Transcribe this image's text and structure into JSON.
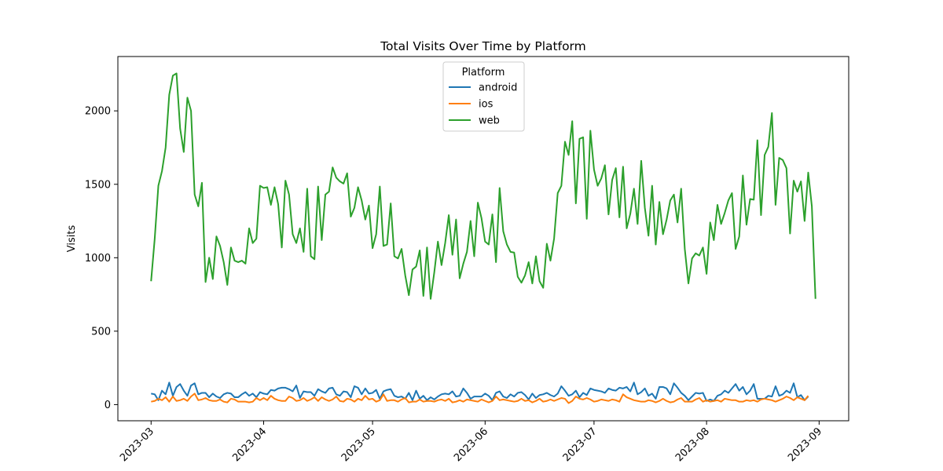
{
  "chart_data": {
    "type": "line",
    "title": "Total Visits Over Time by Platform",
    "xlabel": "",
    "ylabel": "Visits",
    "x_start": "2023-03-01",
    "x_end": "2023-08-31",
    "x_ticks": [
      "2023-03",
      "2023-04",
      "2023-05",
      "2023-06",
      "2023-07",
      "2023-08",
      "2023-09"
    ],
    "y_ticks": [
      0,
      500,
      1000,
      1500,
      2000
    ],
    "ylim": [
      -110,
      2370
    ],
    "grid": false,
    "legend": {
      "title": "Platform",
      "placement": "upper-center"
    },
    "series": [
      {
        "name": "android",
        "color": "#1f77b4",
        "values": [
          75,
          70,
          30,
          95,
          70,
          150,
          60,
          120,
          140,
          95,
          60,
          130,
          145,
          70,
          80,
          80,
          50,
          75,
          55,
          45,
          70,
          80,
          75,
          50,
          50,
          70,
          85,
          60,
          75,
          50,
          85,
          75,
          70,
          100,
          95,
          110,
          115,
          115,
          105,
          90,
          130,
          45,
          90,
          85,
          85,
          60,
          105,
          90,
          80,
          110,
          115,
          70,
          60,
          90,
          85,
          50,
          125,
          115,
          70,
          110,
          75,
          80,
          100,
          40,
          90,
          100,
          105,
          60,
          50,
          55,
          40,
          80,
          30,
          95,
          40,
          60,
          30,
          50,
          35,
          55,
          70,
          75,
          70,
          90,
          55,
          60,
          110,
          80,
          40,
          55,
          55,
          55,
          75,
          60,
          30,
          80,
          90,
          55,
          45,
          70,
          55,
          80,
          85,
          65,
          35,
          75,
          45,
          65,
          70,
          80,
          65,
          55,
          75,
          125,
          95,
          60,
          70,
          95,
          50,
          80,
          65,
          110,
          100,
          95,
          90,
          80,
          110,
          100,
          95,
          115,
          110,
          120,
          90,
          150,
          70,
          85,
          110,
          60,
          75,
          40,
          120,
          120,
          110,
          70,
          145,
          115,
          80,
          60,
          30,
          55,
          80,
          75,
          80,
          25,
          35,
          25,
          60,
          70,
          95,
          80,
          110,
          140,
          95,
          120,
          70,
          95,
          140,
          40,
          40,
          40,
          60,
          55,
          125,
          60,
          70,
          95,
          80,
          145,
          50,
          65,
          30,
          55
        ]
      },
      {
        "name": "ios",
        "color": "#ff7f0e",
        "values": [
          20,
          25,
          40,
          30,
          50,
          20,
          55,
          25,
          30,
          40,
          25,
          55,
          75,
          30,
          35,
          45,
          30,
          25,
          25,
          35,
          20,
          15,
          40,
          35,
          20,
          20,
          20,
          15,
          20,
          45,
          30,
          45,
          30,
          60,
          40,
          30,
          25,
          25,
          55,
          45,
          25,
          30,
          45,
          25,
          35,
          50,
          25,
          50,
          35,
          25,
          35,
          55,
          25,
          20,
          40,
          35,
          20,
          40,
          30,
          60,
          35,
          40,
          20,
          30,
          70,
          25,
          30,
          30,
          20,
          35,
          45,
          15,
          20,
          20,
          35,
          20,
          25,
          25,
          20,
          30,
          35,
          25,
          40,
          15,
          20,
          30,
          20,
          35,
          30,
          25,
          20,
          35,
          25,
          15,
          25,
          55,
          30,
          35,
          30,
          25,
          20,
          25,
          40,
          25,
          30,
          15,
          25,
          40,
          20,
          25,
          35,
          25,
          35,
          45,
          40,
          10,
          25,
          55,
          40,
          35,
          45,
          35,
          20,
          25,
          35,
          30,
          25,
          35,
          30,
          20,
          70,
          50,
          40,
          30,
          25,
          20,
          20,
          30,
          25,
          15,
          25,
          40,
          25,
          15,
          20,
          35,
          45,
          20,
          20,
          20,
          35,
          45,
          20,
          30,
          20,
          25,
          30,
          20,
          40,
          35,
          30,
          30,
          20,
          20,
          30,
          25,
          30,
          20,
          35,
          40,
          35,
          30,
          20,
          30,
          40,
          55,
          45,
          30,
          50,
          40,
          30,
          60
        ]
      },
      {
        "name": "web",
        "color": "#2ca02c",
        "values": [
          840,
          1130,
          1490,
          1590,
          1750,
          2110,
          2240,
          2255,
          1880,
          1720,
          2090,
          2000,
          1430,
          1350,
          1510,
          835,
          1000,
          855,
          1145,
          1080,
          970,
          815,
          1070,
          980,
          970,
          980,
          960,
          1200,
          1100,
          1130,
          1490,
          1475,
          1480,
          1360,
          1480,
          1365,
          1070,
          1525,
          1430,
          1160,
          1100,
          1200,
          1040,
          1470,
          1010,
          990,
          1485,
          1120,
          1430,
          1450,
          1615,
          1545,
          1520,
          1505,
          1575,
          1280,
          1340,
          1480,
          1390,
          1260,
          1355,
          1065,
          1160,
          1485,
          1080,
          1090,
          1370,
          1010,
          995,
          1060,
          880,
          745,
          920,
          940,
          1050,
          740,
          1070,
          720,
          900,
          1110,
          950,
          1100,
          1290,
          1020,
          1260,
          860,
          960,
          1040,
          1250,
          1010,
          1375,
          1270,
          1110,
          1090,
          1295,
          970,
          1475,
          1180,
          1090,
          1040,
          1035,
          870,
          830,
          880,
          970,
          825,
          1010,
          840,
          795,
          1095,
          980,
          1130,
          1440,
          1490,
          1790,
          1700,
          1930,
          1370,
          1810,
          1820,
          1265,
          1865,
          1600,
          1490,
          1540,
          1630,
          1295,
          1530,
          1610,
          1275,
          1620,
          1200,
          1300,
          1470,
          1230,
          1660,
          1340,
          1150,
          1490,
          1090,
          1380,
          1160,
          1260,
          1390,
          1430,
          1240,
          1470,
          1060,
          825,
          995,
          1030,
          1015,
          1070,
          890,
          1240,
          1120,
          1360,
          1230,
          1305,
          1390,
          1440,
          1060,
          1145,
          1560,
          1225,
          1400,
          1395,
          1800,
          1290,
          1700,
          1755,
          1985,
          1360,
          1680,
          1665,
          1610,
          1165,
          1525,
          1450,
          1520,
          1250,
          1580,
          1350,
          720
        ]
      }
    ]
  }
}
